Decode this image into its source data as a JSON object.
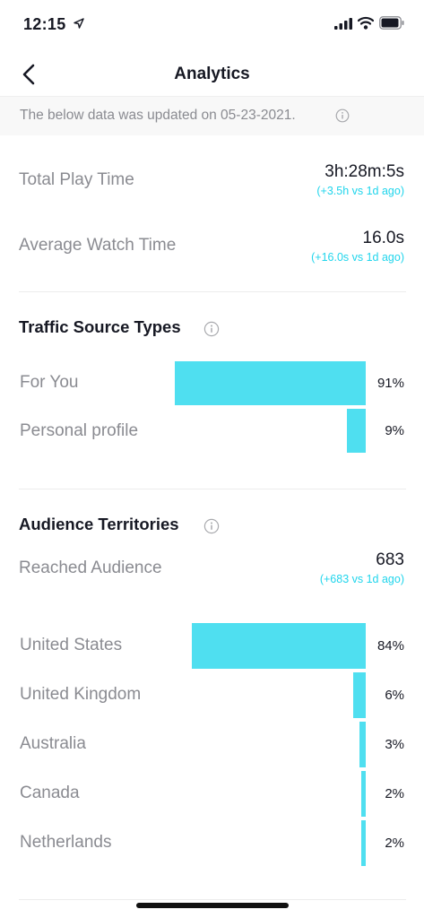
{
  "status_bar": {
    "time": "12:15"
  },
  "nav": {
    "title": "Analytics"
  },
  "banner": {
    "text": "The below data was updated on 05-23-2021."
  },
  "stats": {
    "total_play_time": {
      "label": "Total Play Time",
      "value": "3h:28m:5s",
      "delta": "(+3.5h vs 1d ago)"
    },
    "average_watch_time": {
      "label": "Average Watch Time",
      "value": "16.0s",
      "delta": "(+16.0s vs 1d ago)"
    }
  },
  "traffic": {
    "title": "Traffic Source Types",
    "items": [
      {
        "label": "For You",
        "pct": "91%",
        "value": 91
      },
      {
        "label": "Personal profile",
        "pct": "9%",
        "value": 9
      }
    ]
  },
  "audience": {
    "title": "Audience Territories",
    "reached": {
      "label": "Reached Audience",
      "value": "683",
      "delta": "(+683 vs 1d ago)"
    },
    "items": [
      {
        "label": "United States",
        "pct": "84%",
        "value": 84
      },
      {
        "label": "United Kingdom",
        "pct": "6%",
        "value": 6
      },
      {
        "label": "Australia",
        "pct": "3%",
        "value": 3
      },
      {
        "label": "Canada",
        "pct": "2%",
        "value": 2
      },
      {
        "label": "Netherlands",
        "pct": "2%",
        "value": 2
      }
    ]
  },
  "colors": {
    "accent": "#20d5ec",
    "bar": "#4fdff0",
    "muted_text": "#8a8b91",
    "primary_text": "#161823"
  }
}
